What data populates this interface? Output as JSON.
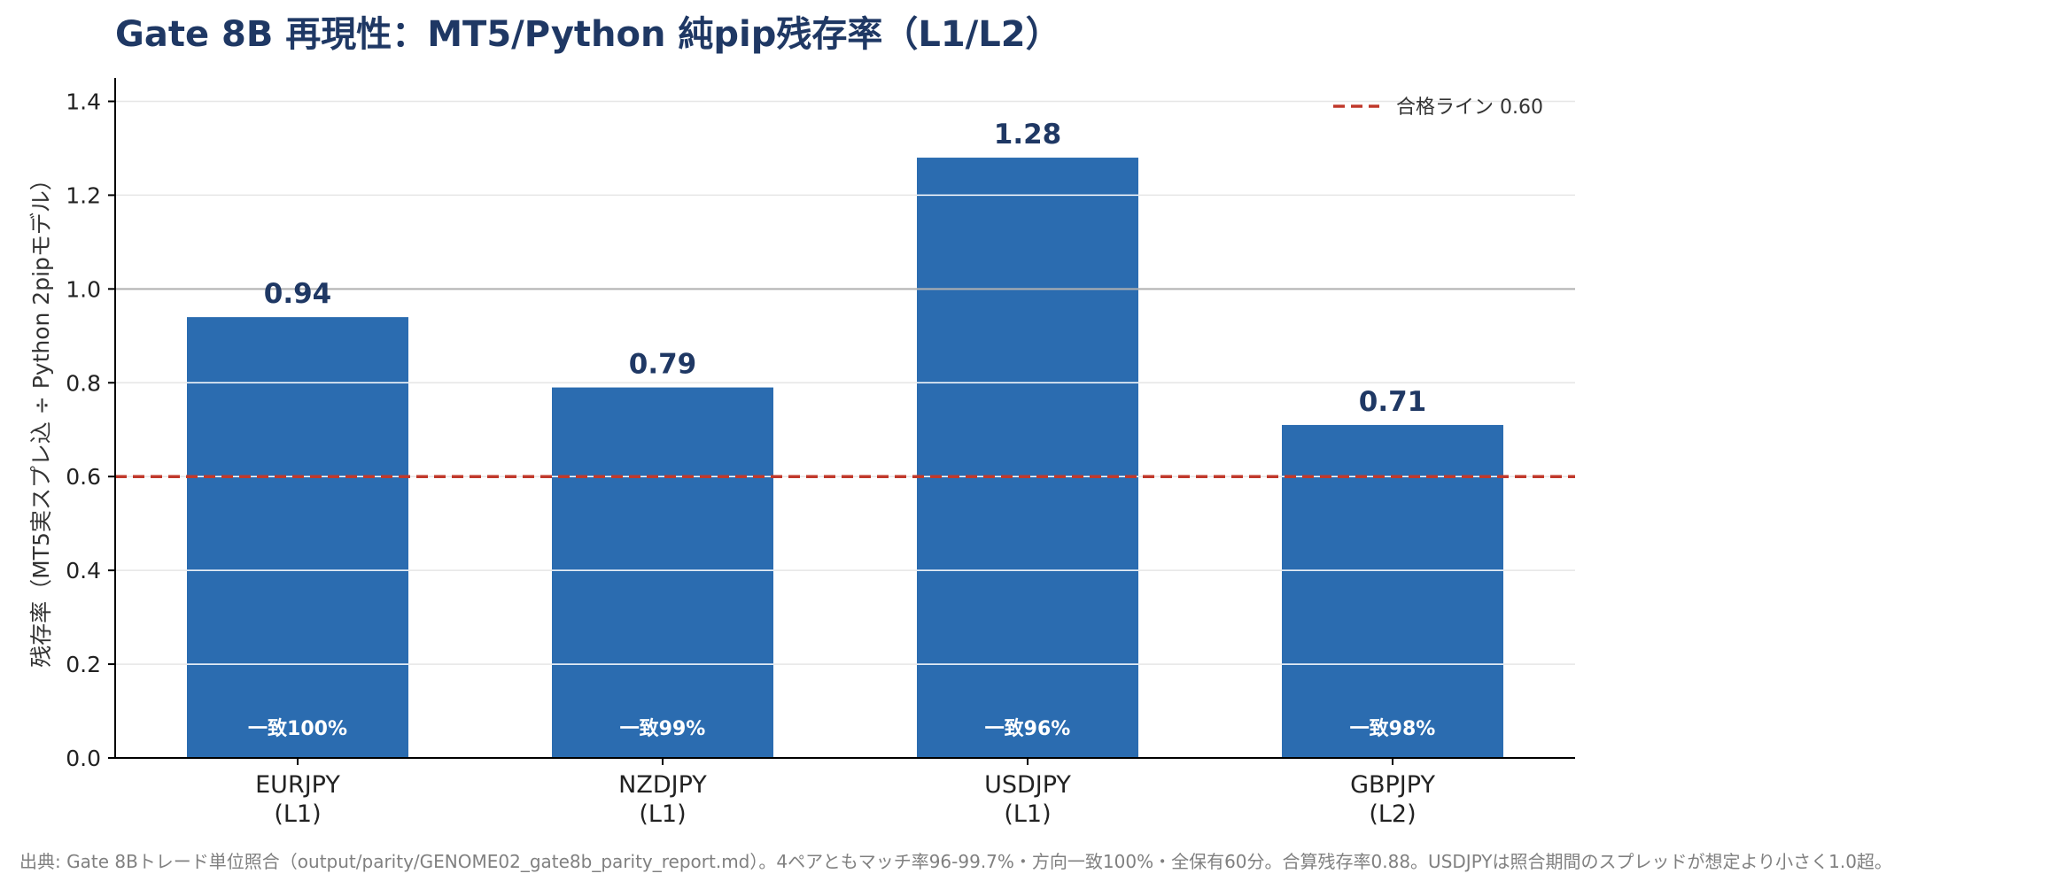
{
  "chart_data": {
    "type": "bar",
    "title": "Gate 8B 再現性：MT5/Python 純pip残存率（L1/L2）",
    "xlabel": "",
    "ylabel": "残存率（MT5実スプレ込 ÷ Python 2pipモデル）",
    "ylim": [
      0,
      1.45
    ],
    "yticks": [
      "0.0",
      "0.2",
      "0.4",
      "0.6",
      "0.8",
      "1.0",
      "1.2",
      "1.4"
    ],
    "grid": true,
    "categories": [
      {
        "pair": "EURJPY",
        "level": "(L1)"
      },
      {
        "pair": "NZDJPY",
        "level": "(L1)"
      },
      {
        "pair": "USDJPY",
        "level": "(L1)"
      },
      {
        "pair": "GBPJPY",
        "level": "(L2)"
      }
    ],
    "values": [
      0.94,
      0.79,
      1.28,
      0.71
    ],
    "value_labels": [
      "0.94",
      "0.79",
      "1.28",
      "0.71"
    ],
    "bar_annotations": [
      "一致100%",
      "一致99%",
      "一致96%",
      "一致98%"
    ],
    "reference_lines": [
      {
        "y": 0.6,
        "label": "合格ライン 0.60",
        "style": "dashed",
        "color": "#c0392b"
      },
      {
        "y": 1.0,
        "label": "",
        "style": "solid",
        "color": "#b0b0b0"
      }
    ],
    "legend": {
      "placement": "top-right",
      "entries": [
        "合格ライン 0.60"
      ]
    },
    "colors": {
      "bar": "#2b6cb0",
      "title": "#1f3864",
      "value": "#1f3864",
      "threshold": "#c0392b"
    }
  },
  "footnote": "出典: Gate 8Bトレード単位照合（output/parity/GENOME02_gate8b_parity_report.md）。4ペアともマッチ率96-99.7%・方向一致100%・全保有60分。合算残存率0.88。USDJPYは照合期間のスプレッドが想定より小さく1.0超。"
}
